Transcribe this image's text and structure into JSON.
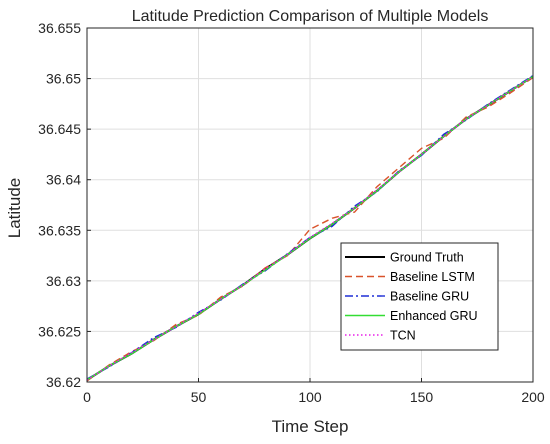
{
  "chart_data": {
    "type": "line",
    "title": "Latitude Prediction Comparison of Multiple Models",
    "xlabel": "Time Step",
    "ylabel": "Latitude",
    "xlim": [
      0,
      200
    ],
    "ylim": [
      36.62,
      36.655
    ],
    "xticks": [
      0,
      50,
      100,
      150,
      200
    ],
    "yticks": [
      36.62,
      36.625,
      36.63,
      36.635,
      36.64,
      36.645,
      36.65,
      36.655
    ],
    "ytick_labels": [
      "36.62",
      "36.625",
      "36.63",
      "36.635",
      "36.64",
      "36.645",
      "36.65",
      "36.655"
    ],
    "grid": true,
    "legend_position": "lower-right",
    "x": [
      0,
      10,
      20,
      30,
      40,
      50,
      60,
      70,
      80,
      90,
      100,
      110,
      120,
      130,
      140,
      150,
      160,
      170,
      180,
      190,
      200
    ],
    "series": [
      {
        "name": "Ground Truth",
        "color": "#000000",
        "style": "solid",
        "values": [
          36.6202,
          36.6216,
          36.6228,
          36.6242,
          36.6255,
          36.6267,
          36.6282,
          36.6296,
          36.6312,
          36.6326,
          36.6342,
          36.6356,
          36.6372,
          36.6389,
          36.6408,
          36.6425,
          36.6443,
          36.646,
          36.6474,
          36.6488,
          36.6502
        ]
      },
      {
        "name": "Baseline LSTM",
        "color": "#d9532b",
        "style": "dashed",
        "values": [
          36.6201,
          36.6217,
          36.623,
          36.6241,
          36.6257,
          36.6266,
          36.6284,
          36.6295,
          36.6313,
          36.6325,
          36.6351,
          36.6362,
          36.6368,
          36.6393,
          36.6412,
          36.6431,
          36.6441,
          36.6462,
          36.6472,
          36.6486,
          36.6501
        ]
      },
      {
        "name": "Baseline GRU",
        "color": "#1f2fd6",
        "style": "dashdot",
        "values": [
          36.6203,
          36.6215,
          36.6229,
          36.6244,
          36.6254,
          36.6269,
          36.6281,
          36.6297,
          36.631,
          36.6327,
          36.6343,
          36.6354,
          36.6374,
          36.6388,
          36.6409,
          36.6424,
          36.6445,
          36.6459,
          36.6475,
          36.6489,
          36.6503
        ]
      },
      {
        "name": "Enhanced GRU",
        "color": "#33dd33",
        "style": "solid",
        "values": [
          36.6202,
          36.6216,
          36.6228,
          36.6242,
          36.6255,
          36.6267,
          36.6282,
          36.6296,
          36.6311,
          36.6326,
          36.6342,
          36.6356,
          36.6372,
          36.6389,
          36.6408,
          36.6425,
          36.6443,
          36.646,
          36.6474,
          36.6488,
          36.6502
        ]
      },
      {
        "name": "TCN",
        "color": "#e81ee8",
        "style": "dotted",
        "values": [
          36.6202,
          36.6216,
          36.6229,
          36.6242,
          36.6255,
          36.6268,
          36.6282,
          36.6296,
          36.6312,
          36.6326,
          36.6343,
          36.6357,
          36.6372,
          36.639,
          36.6408,
          36.6425,
          36.6443,
          36.646,
          36.6474,
          36.6488,
          36.6502
        ]
      }
    ]
  }
}
